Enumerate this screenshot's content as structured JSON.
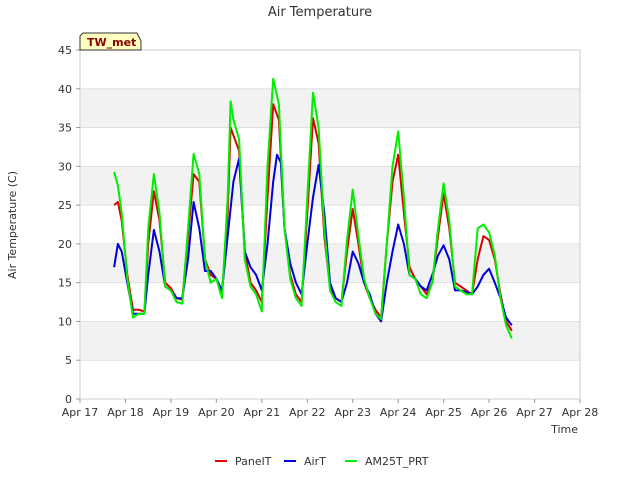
{
  "chart_data": {
    "type": "line",
    "title": "Air Temperature",
    "station_badge": "TW_met",
    "xlabel": "Time",
    "ylabel": "Air Temperature (C)",
    "x_ticks": [
      "Apr 17",
      "Apr 18",
      "Apr 19",
      "Apr 20",
      "Apr 21",
      "Apr 22",
      "Apr 23",
      "Apr 24",
      "Apr 25",
      "Apr 26",
      "Apr 27",
      "Apr 28"
    ],
    "y_ticks": [
      "0",
      "5",
      "10",
      "15",
      "20",
      "25",
      "30",
      "35",
      "40",
      "45"
    ],
    "xlim": [
      "Apr 17",
      "Apr 28"
    ],
    "ylim": [
      0,
      45
    ],
    "grid": "horizontal bands",
    "legend_position": "bottom",
    "series": [
      {
        "name": "PanelT",
        "color": "#dd0000",
        "points": [
          [
            "Apr 17 18:00",
            25.0
          ],
          [
            "Apr 17 20:00",
            25.4
          ],
          [
            "Apr 17 22:00",
            23.0
          ],
          [
            "Apr 18 01:00",
            16.0
          ],
          [
            "Apr 18 04:00",
            11.5
          ],
          [
            "Apr 18 07:00",
            11.5
          ],
          [
            "Apr 18 10:00",
            11.3
          ],
          [
            "Apr 18 12:00",
            20.0
          ],
          [
            "Apr 18 15:00",
            26.8
          ],
          [
            "Apr 18 18:00",
            23.0
          ],
          [
            "Apr 18 21:00",
            15.0
          ],
          [
            "Apr 19 00:00",
            14.3
          ],
          [
            "Apr 19 03:00",
            13.0
          ],
          [
            "Apr 19 06:00",
            12.8
          ],
          [
            "Apr 19 09:00",
            21.0
          ],
          [
            "Apr 19 12:00",
            29.0
          ],
          [
            "Apr 19 15:00",
            28.0
          ],
          [
            "Apr 19 18:00",
            18.0
          ],
          [
            "Apr 19 21:00",
            16.0
          ],
          [
            "Apr 20 00:00",
            15.5
          ],
          [
            "Apr 20 03:00",
            13.5
          ],
          [
            "Apr 20 06:00",
            24.0
          ],
          [
            "Apr 20 07:30",
            35.0
          ],
          [
            "Apr 20 09:00",
            34.0
          ],
          [
            "Apr 20 12:00",
            32.0
          ],
          [
            "Apr 20 15:00",
            19.0
          ],
          [
            "Apr 20 18:00",
            15.0
          ],
          [
            "Apr 20 21:00",
            14.0
          ],
          [
            "Apr 21 00:00",
            12.5
          ],
          [
            "Apr 21 03:00",
            26.0
          ],
          [
            "Apr 21 06:00",
            38.0
          ],
          [
            "Apr 21 09:00",
            36.0
          ],
          [
            "Apr 21 12:00",
            22.0
          ],
          [
            "Apr 21 15:00",
            16.0
          ],
          [
            "Apr 21 18:00",
            13.5
          ],
          [
            "Apr 21 21:00",
            12.5
          ],
          [
            "Apr 22 00:00",
            24.0
          ],
          [
            "Apr 22 03:00",
            36.2
          ],
          [
            "Apr 22 06:00",
            33.0
          ],
          [
            "Apr 22 09:00",
            21.0
          ],
          [
            "Apr 22 12:00",
            14.5
          ],
          [
            "Apr 22 15:00",
            13.0
          ],
          [
            "Apr 22 18:00",
            12.5
          ],
          [
            "Apr 22 21:00",
            19.0
          ],
          [
            "Apr 23 00:00",
            24.5
          ],
          [
            "Apr 23 03:00",
            20.0
          ],
          [
            "Apr 23 06:00",
            15.0
          ],
          [
            "Apr 23 09:00",
            13.0
          ],
          [
            "Apr 23 12:00",
            11.5
          ],
          [
            "Apr 23 15:00",
            10.5
          ],
          [
            "Apr 23 18:00",
            20.0
          ],
          [
            "Apr 23 21:00",
            28.0
          ],
          [
            "Apr 24 00:00",
            31.5
          ],
          [
            "Apr 24 03:00",
            24.0
          ],
          [
            "Apr 24 06:00",
            17.0
          ],
          [
            "Apr 24 09:00",
            15.5
          ],
          [
            "Apr 24 12:00",
            14.5
          ],
          [
            "Apr 24 15:00",
            13.5
          ],
          [
            "Apr 24 18:00",
            15.0
          ],
          [
            "Apr 24 21:00",
            21.0
          ],
          [
            "Apr 25 00:00",
            26.5
          ],
          [
            "Apr 25 03:00",
            22.0
          ],
          [
            "Apr 25 06:00",
            15.0
          ],
          [
            "Apr 25 09:00",
            14.5
          ],
          [
            "Apr 25 12:00",
            14.0
          ],
          [
            "Apr 25 15:00",
            13.5
          ],
          [
            "Apr 25 18:00",
            18.0
          ],
          [
            "Apr 25 21:00",
            21.0
          ],
          [
            "Apr 26 00:00",
            20.5
          ],
          [
            "Apr 26 03:00",
            18.0
          ],
          [
            "Apr 26 06:00",
            13.5
          ],
          [
            "Apr 26 09:00",
            10.0
          ],
          [
            "Apr 26 12:00",
            8.8
          ]
        ]
      },
      {
        "name": "AirT",
        "color": "#0000dd",
        "points": [
          [
            "Apr 17 18:00",
            17.0
          ],
          [
            "Apr 17 20:00",
            20.0
          ],
          [
            "Apr 17 22:00",
            19.0
          ],
          [
            "Apr 18 01:00",
            15.0
          ],
          [
            "Apr 18 04:00",
            11.0
          ],
          [
            "Apr 18 07:00",
            11.0
          ],
          [
            "Apr 18 10:00",
            11.0
          ],
          [
            "Apr 18 12:00",
            16.0
          ],
          [
            "Apr 18 15:00",
            21.8
          ],
          [
            "Apr 18 18:00",
            19.0
          ],
          [
            "Apr 18 21:00",
            14.5
          ],
          [
            "Apr 19 00:00",
            14.0
          ],
          [
            "Apr 19 03:00",
            13.0
          ],
          [
            "Apr 19 06:00",
            13.0
          ],
          [
            "Apr 19 09:00",
            18.0
          ],
          [
            "Apr 19 12:00",
            25.4
          ],
          [
            "Apr 19 15:00",
            22.0
          ],
          [
            "Apr 19 18:00",
            16.5
          ],
          [
            "Apr 19 21:00",
            16.5
          ],
          [
            "Apr 20 00:00",
            15.5
          ],
          [
            "Apr 20 03:00",
            14.0
          ],
          [
            "Apr 20 06:00",
            21.0
          ],
          [
            "Apr 20 09:00",
            28.0
          ],
          [
            "Apr 20 12:00",
            31.0
          ],
          [
            "Apr 20 15:00",
            19.0
          ],
          [
            "Apr 20 18:00",
            17.0
          ],
          [
            "Apr 20 21:00",
            16.0
          ],
          [
            "Apr 21 00:00",
            14.0
          ],
          [
            "Apr 21 03:00",
            20.0
          ],
          [
            "Apr 21 06:00",
            28.0
          ],
          [
            "Apr 21 08:00",
            31.5
          ],
          [
            "Apr 21 10:00",
            30.5
          ],
          [
            "Apr 21 12:00",
            22.0
          ],
          [
            "Apr 21 15:00",
            17.5
          ],
          [
            "Apr 21 18:00",
            15.0
          ],
          [
            "Apr 21 21:00",
            13.5
          ],
          [
            "Apr 22 00:00",
            20.0
          ],
          [
            "Apr 22 03:00",
            26.0
          ],
          [
            "Apr 22 06:00",
            30.2
          ],
          [
            "Apr 22 09:00",
            24.0
          ],
          [
            "Apr 22 12:00",
            15.0
          ],
          [
            "Apr 22 15:00",
            13.0
          ],
          [
            "Apr 22 18:00",
            12.5
          ],
          [
            "Apr 22 21:00",
            15.0
          ],
          [
            "Apr 23 00:00",
            19.0
          ],
          [
            "Apr 23 03:00",
            17.5
          ],
          [
            "Apr 23 06:00",
            15.0
          ],
          [
            "Apr 23 09:00",
            13.5
          ],
          [
            "Apr 23 12:00",
            11.0
          ],
          [
            "Apr 23 15:00",
            10.0
          ],
          [
            "Apr 23 18:00",
            15.0
          ],
          [
            "Apr 23 21:00",
            19.0
          ],
          [
            "Apr 24 00:00",
            22.5
          ],
          [
            "Apr 24 03:00",
            20.0
          ],
          [
            "Apr 24 06:00",
            16.0
          ],
          [
            "Apr 24 09:00",
            15.5
          ],
          [
            "Apr 24 12:00",
            14.5
          ],
          [
            "Apr 24 15:00",
            14.0
          ],
          [
            "Apr 24 18:00",
            16.0
          ],
          [
            "Apr 24 21:00",
            18.5
          ],
          [
            "Apr 25 00:00",
            19.8
          ],
          [
            "Apr 25 03:00",
            18.0
          ],
          [
            "Apr 25 06:00",
            14.0
          ],
          [
            "Apr 25 09:00",
            14.0
          ],
          [
            "Apr 25 12:00",
            13.8
          ],
          [
            "Apr 25 15:00",
            13.5
          ],
          [
            "Apr 25 18:00",
            14.5
          ],
          [
            "Apr 25 21:00",
            16.0
          ],
          [
            "Apr 26 00:00",
            16.8
          ],
          [
            "Apr 26 03:00",
            15.0
          ],
          [
            "Apr 26 06:00",
            13.0
          ],
          [
            "Apr 26 09:00",
            10.5
          ],
          [
            "Apr 26 12:00",
            9.5
          ]
        ]
      },
      {
        "name": "AM25T_PRT",
        "color": "#00ee00",
        "points": [
          [
            "Apr 17 18:00",
            29.3
          ],
          [
            "Apr 17 20:00",
            27.5
          ],
          [
            "Apr 17 22:00",
            24.0
          ],
          [
            "Apr 18 01:00",
            15.5
          ],
          [
            "Apr 18 04:00",
            10.5
          ],
          [
            "Apr 18 07:00",
            11.0
          ],
          [
            "Apr 18 10:00",
            11.0
          ],
          [
            "Apr 18 12:00",
            22.0
          ],
          [
            "Apr 18 15:00",
            29.0
          ],
          [
            "Apr 18 18:00",
            24.0
          ],
          [
            "Apr 18 21:00",
            14.5
          ],
          [
            "Apr 19 00:00",
            14.0
          ],
          [
            "Apr 19 03:00",
            12.5
          ],
          [
            "Apr 19 06:00",
            12.3
          ],
          [
            "Apr 19 09:00",
            22.0
          ],
          [
            "Apr 19 12:00",
            31.6
          ],
          [
            "Apr 19 15:00",
            29.0
          ],
          [
            "Apr 19 18:00",
            18.0
          ],
          [
            "Apr 19 21:00",
            15.0
          ],
          [
            "Apr 20 00:00",
            15.5
          ],
          [
            "Apr 20 03:00",
            13.0
          ],
          [
            "Apr 20 06:00",
            26.0
          ],
          [
            "Apr 20 07:30",
            38.4
          ],
          [
            "Apr 20 09:00",
            36.0
          ],
          [
            "Apr 20 12:00",
            33.5
          ],
          [
            "Apr 20 15:00",
            18.0
          ],
          [
            "Apr 20 18:00",
            14.5
          ],
          [
            "Apr 20 21:00",
            13.5
          ],
          [
            "Apr 21 00:00",
            11.3
          ],
          [
            "Apr 21 03:00",
            30.0
          ],
          [
            "Apr 21 06:00",
            41.3
          ],
          [
            "Apr 21 09:00",
            38.0
          ],
          [
            "Apr 21 12:00",
            22.0
          ],
          [
            "Apr 21 15:00",
            15.5
          ],
          [
            "Apr 21 18:00",
            13.0
          ],
          [
            "Apr 21 21:00",
            12.0
          ],
          [
            "Apr 22 00:00",
            26.0
          ],
          [
            "Apr 22 03:00",
            39.5
          ],
          [
            "Apr 22 06:00",
            35.0
          ],
          [
            "Apr 22 09:00",
            22.0
          ],
          [
            "Apr 22 12:00",
            14.0
          ],
          [
            "Apr 22 15:00",
            12.5
          ],
          [
            "Apr 22 18:00",
            12.0
          ],
          [
            "Apr 22 21:00",
            20.5
          ],
          [
            "Apr 23 00:00",
            27.0
          ],
          [
            "Apr 23 03:00",
            21.0
          ],
          [
            "Apr 23 06:00",
            15.5
          ],
          [
            "Apr 23 09:00",
            13.0
          ],
          [
            "Apr 23 12:00",
            11.0
          ],
          [
            "Apr 23 15:00",
            10.3
          ],
          [
            "Apr 23 18:00",
            20.0
          ],
          [
            "Apr 23 21:00",
            30.0
          ],
          [
            "Apr 24 00:00",
            34.5
          ],
          [
            "Apr 24 03:00",
            26.0
          ],
          [
            "Apr 24 06:00",
            16.0
          ],
          [
            "Apr 24 09:00",
            15.5
          ],
          [
            "Apr 24 12:00",
            13.5
          ],
          [
            "Apr 24 15:00",
            13.0
          ],
          [
            "Apr 24 18:00",
            15.0
          ],
          [
            "Apr 24 21:00",
            22.0
          ],
          [
            "Apr 25 00:00",
            27.8
          ],
          [
            "Apr 25 03:00",
            23.0
          ],
          [
            "Apr 25 06:00",
            14.5
          ],
          [
            "Apr 25 09:00",
            14.0
          ],
          [
            "Apr 25 12:00",
            13.5
          ],
          [
            "Apr 25 15:00",
            13.5
          ],
          [
            "Apr 25 18:00",
            22.0
          ],
          [
            "Apr 25 21:00",
            22.5
          ],
          [
            "Apr 26 00:00",
            21.5
          ],
          [
            "Apr 26 03:00",
            18.5
          ],
          [
            "Apr 26 06:00",
            13.0
          ],
          [
            "Apr 26 09:00",
            9.5
          ],
          [
            "Apr 26 12:00",
            7.8
          ]
        ]
      }
    ]
  }
}
